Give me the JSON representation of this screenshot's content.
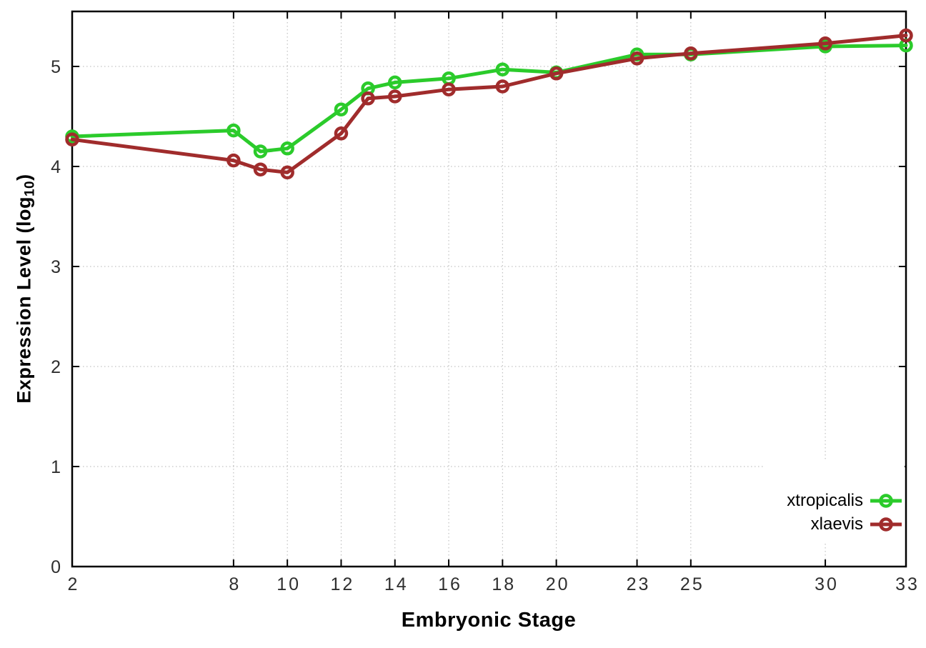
{
  "chart_data": {
    "type": "line",
    "x": [
      2,
      8,
      9,
      10,
      12,
      13,
      14,
      16,
      18,
      20,
      23,
      25,
      30,
      33
    ],
    "series": [
      {
        "name": "xtropicalis",
        "color": "#2bcb2b",
        "values": [
          4.3,
          4.36,
          4.15,
          4.18,
          4.57,
          4.78,
          4.84,
          4.88,
          4.97,
          4.94,
          5.12,
          5.12,
          5.2,
          5.21
        ]
      },
      {
        "name": "xlaevis",
        "color": "#a02c2c",
        "values": [
          4.27,
          4.06,
          3.97,
          3.94,
          4.33,
          4.68,
          4.7,
          4.77,
          4.8,
          4.93,
          5.08,
          5.13,
          5.23,
          5.31
        ]
      }
    ],
    "title": "",
    "xlabel": "Embryonic Stage",
    "ylabel": "Expression Level (log10)",
    "ylabel_prefix": "Expression Level (log",
    "ylabel_sub": "10",
    "ylabel_suffix": ")",
    "xlim": [
      2,
      33
    ],
    "ylim": [
      0,
      5.55
    ],
    "xticks": [
      2,
      8,
      10,
      12,
      14,
      16,
      18,
      20,
      23,
      25,
      30,
      33
    ],
    "yticks": [
      0,
      1,
      2,
      3,
      4,
      5
    ],
    "grid": "dotted",
    "legend_position": "inside-right",
    "marker": "open-circle"
  },
  "style": {
    "background": "#ffffff",
    "axis_color": "#000000",
    "grid_color": "#b5b5b5",
    "tick_label_color": "#2f2f2f"
  }
}
